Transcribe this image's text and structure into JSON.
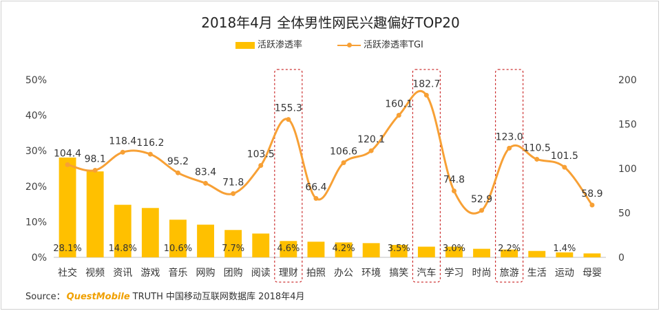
{
  "title": "2018年4月 全体男性网民兴趣偏好TOP20",
  "legend": {
    "bar_label": "活跃渗透率",
    "line_label": "活跃渗透率TGI"
  },
  "source": {
    "prefix": "Source：",
    "brand": "QuestMobile",
    "suffix": "TRUTH 中国移动互联网数据库 2018年4月"
  },
  "colors": {
    "bar": "#FFC000",
    "line": "#F7A035",
    "highlight_box": "#C00000",
    "axis": "#BFBFBF"
  },
  "chart_data": {
    "type": "bar",
    "categories": [
      "社交",
      "视频",
      "资讯",
      "游戏",
      "音乐",
      "网购",
      "团购",
      "阅读",
      "理财",
      "拍照",
      "办公",
      "环境",
      "搞笑",
      "汽车",
      "学习",
      "时尚",
      "旅游",
      "生活",
      "运动",
      "母婴"
    ],
    "series": [
      {
        "name": "活跃渗透率",
        "type": "bar",
        "axis": "left",
        "values": [
          28.1,
          24.2,
          14.8,
          13.9,
          10.6,
          9.2,
          7.7,
          6.7,
          4.6,
          4.4,
          4.2,
          4.0,
          3.5,
          3.0,
          3.0,
          2.4,
          2.2,
          1.8,
          1.4,
          1.1
        ],
        "labels": [
          "28.1%",
          "",
          "14.8%",
          "",
          "10.6%",
          "",
          "7.7%",
          "",
          "4.6%",
          "",
          "4.2%",
          "",
          "3.5%",
          "",
          "3.0%",
          "",
          "2.2%",
          "",
          "1.4%",
          ""
        ]
      },
      {
        "name": "活跃渗透率TGI",
        "type": "line",
        "axis": "right",
        "values": [
          104.4,
          98.1,
          118.4,
          116.2,
          95.2,
          83.4,
          71.8,
          103.5,
          155.3,
          66.4,
          106.6,
          120.1,
          160.1,
          182.7,
          74.8,
          52.9,
          123.0,
          110.5,
          101.5,
          58.9
        ],
        "labels": [
          "104.4",
          "98.1",
          "118.4",
          "116.2",
          "95.2",
          "83.4",
          "71.8",
          "103.5",
          "155.3",
          "66.4",
          "106.6",
          "120.1",
          "160.1",
          "182.7",
          "74.8",
          "52.9",
          "123.0",
          "110.5",
          "101.5",
          "58.9"
        ]
      }
    ],
    "y_left": {
      "ylim": [
        0,
        50
      ],
      "ticks": [
        0,
        10,
        20,
        30,
        40,
        50
      ],
      "tick_labels": [
        "0%",
        "10%",
        "20%",
        "30%",
        "40%",
        "50%"
      ]
    },
    "y_right": {
      "ylim": [
        0,
        200
      ],
      "ticks": [
        0,
        50,
        100,
        150,
        200
      ],
      "tick_labels": [
        "0",
        "50",
        "100",
        "150",
        "200"
      ]
    },
    "highlighted_categories": [
      "理财",
      "汽车",
      "旅游"
    ],
    "grid": false,
    "legend_position": "top"
  }
}
